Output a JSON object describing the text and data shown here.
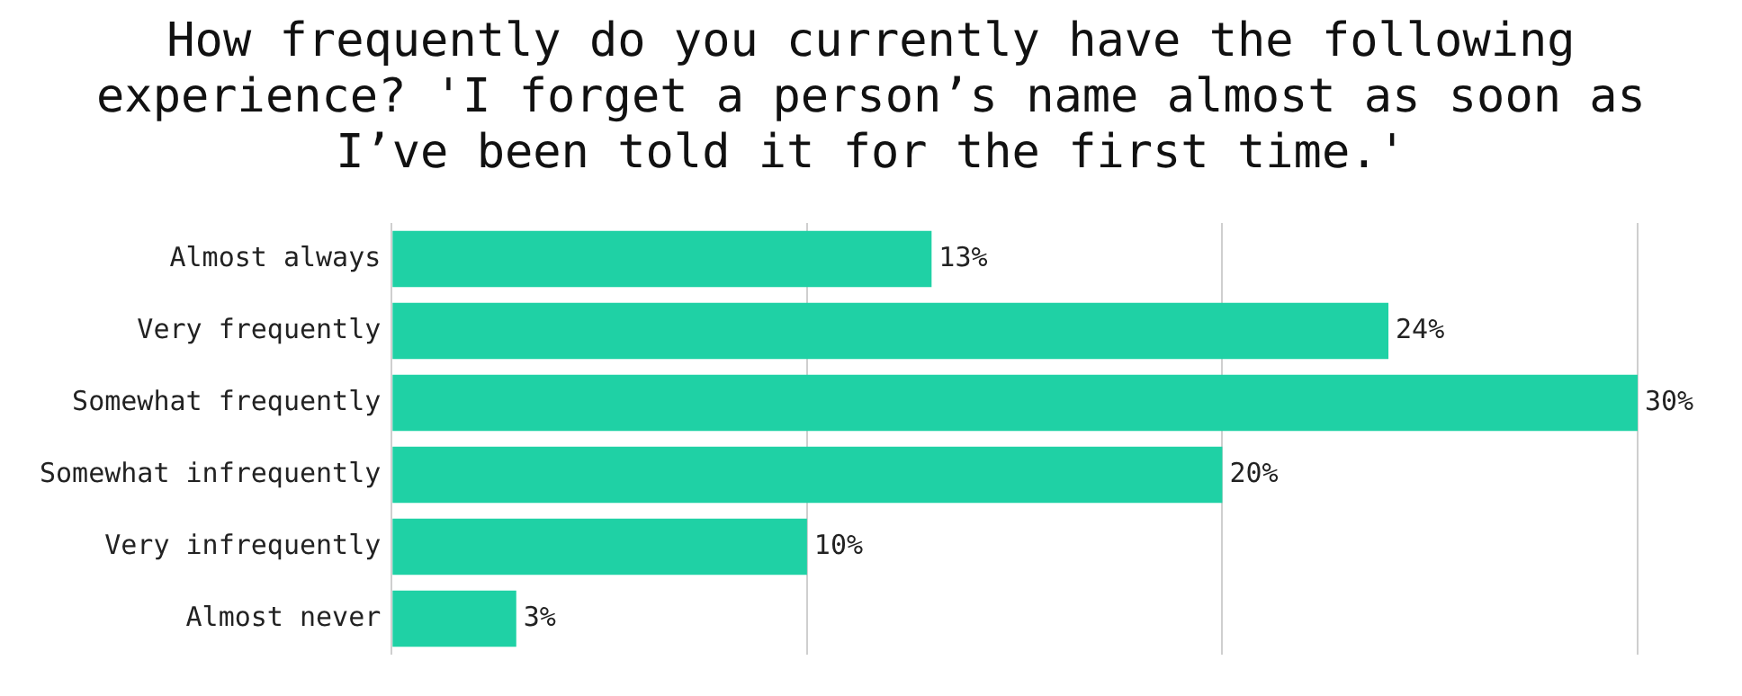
{
  "chart_data": {
    "type": "bar",
    "orientation": "horizontal",
    "title": "How frequently do you currently have the following experience? 'I forget a person’s name almost as soon as I’ve been told it for the first time.'",
    "categories": [
      "Almost always",
      "Very frequently",
      "Somewhat frequently",
      "Somewhat infrequently",
      "Very infrequently",
      "Almost never"
    ],
    "values": [
      13,
      24,
      30,
      20,
      10,
      3
    ],
    "value_labels": [
      "13%",
      "24%",
      "30%",
      "20%",
      "10%",
      "3%"
    ],
    "color": "#1fd1a5",
    "xlim": [
      0,
      30
    ],
    "xticks": [
      {
        "value": 0,
        "label": null
      },
      {
        "value": 10,
        "label": null
      },
      {
        "value": 20,
        "label": null
      },
      {
        "value": 30,
        "label": null
      }
    ],
    "grid": "x",
    "tick_labels": "y",
    "legend": false
  }
}
